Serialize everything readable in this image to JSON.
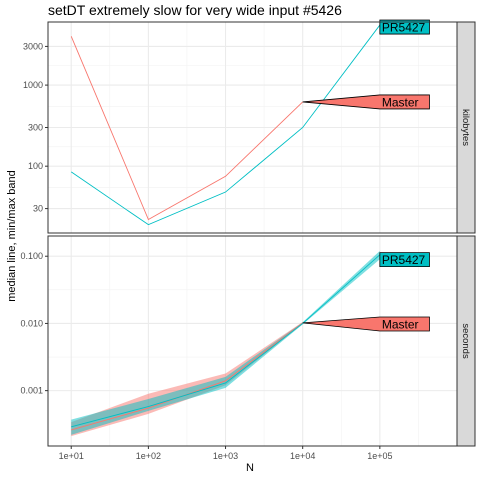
{
  "chart_data": {
    "type": "line",
    "title": "setDT extremely slow for very wide input #5426",
    "xlabel": "N",
    "ylabel": "median line, min/max band",
    "x_scale": "log10",
    "x_ticks": [
      {
        "value": 10,
        "label": "1e+01"
      },
      {
        "value": 100,
        "label": "1e+02"
      },
      {
        "value": 1000,
        "label": "1e+03"
      },
      {
        "value": 10000,
        "label": "1e+04"
      },
      {
        "value": 100000,
        "label": "1e+05"
      }
    ],
    "xlim": [
      5,
      1000000
    ],
    "grid": true,
    "series_colors": {
      "Master": "#F8766D",
      "PR5427": "#00BFC4"
    },
    "panels": [
      {
        "strip": "kilobytes",
        "y_scale": "log10",
        "ylim": [
          15,
          6000
        ],
        "y_ticks": [
          {
            "value": 30,
            "label": "30"
          },
          {
            "value": 100,
            "label": "100"
          },
          {
            "value": 300,
            "label": "300"
          },
          {
            "value": 1000,
            "label": "1000"
          },
          {
            "value": 3000,
            "label": "3000"
          }
        ],
        "series": [
          {
            "name": "Master",
            "x": [
              10,
              100,
              1000,
              10000
            ],
            "y": [
              4000,
              22,
              75,
              620
            ]
          },
          {
            "name": "PR5427",
            "x": [
              10,
              100,
              1000,
              10000,
              100000
            ],
            "y": [
              85,
              19,
              48,
              300,
              5500
            ]
          }
        ],
        "labels": [
          {
            "text": "Master",
            "series": "Master",
            "x": 10000,
            "y": 620,
            "label_x": 100000,
            "label_y": 620
          },
          {
            "text": "PR5427",
            "series": "PR5427",
            "x": 100000,
            "y": 5500,
            "label_x": 100000,
            "label_y": 5200
          }
        ]
      },
      {
        "strip": "seconds",
        "y_scale": "log10",
        "ylim": [
          0.00015,
          0.2
        ],
        "y_ticks": [
          {
            "value": 0.001,
            "label": "0.001"
          },
          {
            "value": 0.01,
            "label": "0.010"
          },
          {
            "value": 0.1,
            "label": "0.100"
          }
        ],
        "series": [
          {
            "name": "Master",
            "x": [
              10,
              100,
              1000,
              10000
            ],
            "y": [
              0.00026,
              0.00055,
              0.0014,
              0.0102
            ],
            "ymin": [
              0.00021,
              0.00045,
              0.0012,
              0.0099
            ],
            "ymax": [
              0.00034,
              0.0009,
              0.0018,
              0.0105
            ]
          },
          {
            "name": "PR5427",
            "x": [
              10,
              100,
              1000,
              10000,
              100000
            ],
            "y": [
              0.00029,
              0.00058,
              0.0013,
              0.01,
              0.105
            ],
            "ymin": [
              0.00022,
              0.0005,
              0.0011,
              0.0097,
              0.09
            ],
            "ymax": [
              0.00037,
              0.00075,
              0.0016,
              0.0104,
              0.12
            ]
          }
        ],
        "labels": [
          {
            "text": "Master",
            "series": "Master",
            "x": 10000,
            "y": 0.0102,
            "label_x": 100000,
            "label_y": 0.0098
          },
          {
            "text": "PR5427",
            "series": "PR5427",
            "x": 100000,
            "y": 0.105,
            "label_x": 100000,
            "label_y": 0.089
          }
        ]
      }
    ]
  }
}
